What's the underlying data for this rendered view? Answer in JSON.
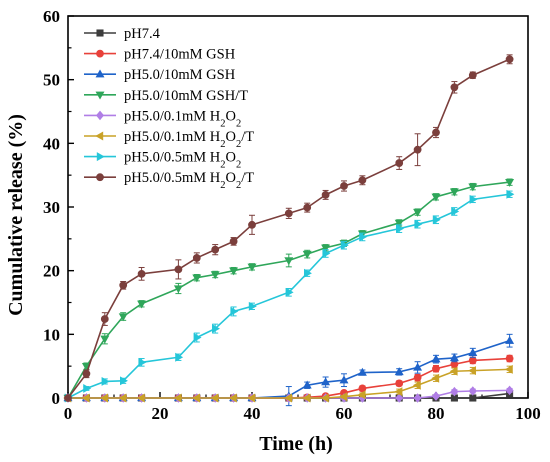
{
  "chart_data": {
    "type": "line",
    "xlabel": "Time (h)",
    "ylabel": "Cumulative release (%)",
    "xlim": [
      0,
      100
    ],
    "ylim": [
      0,
      60
    ],
    "x_ticks": [
      0,
      20,
      40,
      60,
      80,
      100
    ],
    "y_ticks": [
      0,
      10,
      20,
      30,
      40,
      50,
      60
    ],
    "grid": false,
    "legend_position": "top-left",
    "series": [
      {
        "name": "pH7.4",
        "legend": [
          {
            "t": "pH7.4"
          }
        ],
        "color": "#3d3d3d",
        "marker": "square",
        "x": [
          0,
          4,
          8,
          12,
          16,
          24,
          28,
          32,
          36,
          40,
          48,
          52,
          56,
          60,
          64,
          72,
          76,
          80,
          84,
          88,
          96
        ],
        "y": [
          0,
          0,
          0,
          0,
          0,
          0,
          0,
          0,
          0,
          0,
          0,
          0,
          0,
          0,
          0,
          0,
          0,
          0,
          0,
          0,
          0.7
        ],
        "err": [
          0,
          0,
          0,
          0,
          0,
          0,
          0,
          0,
          0,
          0,
          0,
          0,
          0,
          0,
          0,
          0,
          0,
          0,
          0,
          0,
          0.3
        ]
      },
      {
        "name": "pH7.4/10mM GSH",
        "legend": [
          {
            "t": "pH7.4/10mM GSH"
          }
        ],
        "color": "#e8413a",
        "marker": "circle",
        "x": [
          0,
          4,
          8,
          12,
          16,
          24,
          28,
          32,
          36,
          40,
          48,
          52,
          56,
          60,
          64,
          72,
          76,
          80,
          84,
          88,
          96
        ],
        "y": [
          0,
          0,
          0,
          0,
          0,
          0,
          0,
          0,
          0,
          0,
          0,
          0.1,
          0.3,
          0.8,
          1.5,
          2.3,
          3.2,
          4.6,
          5.3,
          5.9,
          6.2
        ],
        "err": [
          0,
          0,
          0,
          0,
          0,
          0,
          0,
          0,
          0,
          0,
          0,
          0.1,
          0.2,
          0.3,
          0.4,
          0.4,
          0.5,
          0.5,
          0.5,
          0.5,
          0.5
        ]
      },
      {
        "name": "pH5.0/10mM GSH",
        "legend": [
          {
            "t": "pH5.0/10mM GSH"
          }
        ],
        "color": "#1f63c9",
        "marker": "triangle-up",
        "x": [
          0,
          4,
          8,
          12,
          16,
          24,
          28,
          32,
          36,
          40,
          48,
          52,
          56,
          60,
          64,
          72,
          76,
          80,
          84,
          88,
          96
        ],
        "y": [
          0,
          0,
          0,
          0,
          0,
          0,
          0,
          0,
          0,
          0,
          0.3,
          2.0,
          2.5,
          2.8,
          4.0,
          4.1,
          4.8,
          6.1,
          6.3,
          7.1,
          9.0
        ],
        "err": [
          0,
          0,
          0,
          0,
          0,
          0,
          0,
          0,
          0,
          0,
          1.5,
          0.5,
          0.8,
          1.0,
          0.4,
          0.5,
          0.9,
          0.6,
          0.6,
          0.7,
          1.0
        ]
      },
      {
        "name": "pH5.0/10mM GSH/T",
        "legend": [
          {
            "t": "pH5.0/10mM GSH/T"
          }
        ],
        "color": "#2fa65a",
        "marker": "triangle-down",
        "x": [
          0,
          4,
          8,
          12,
          16,
          24,
          28,
          32,
          36,
          40,
          48,
          52,
          56,
          60,
          64,
          72,
          76,
          80,
          84,
          88,
          96
        ],
        "y": [
          0,
          5.0,
          9.3,
          12.8,
          14.8,
          17.2,
          18.9,
          19.4,
          20.0,
          20.6,
          21.6,
          22.6,
          23.6,
          24.3,
          25.8,
          27.5,
          29.2,
          31.6,
          32.4,
          33.2,
          33.9
        ],
        "err": [
          0,
          0.5,
          0.8,
          0.6,
          0.5,
          0.8,
          0.5,
          0.5,
          0.5,
          0.5,
          1.0,
          0.6,
          0.5,
          0.5,
          0.5,
          0.5,
          0.5,
          0.5,
          0.5,
          0.5,
          0.5
        ]
      },
      {
        "name": "pH5.0/0.1mM H2O2",
        "legend": [
          {
            "t": "pH5.0/0.1mM H"
          },
          {
            "t": "2",
            "sub": true
          },
          {
            "t": "O"
          },
          {
            "t": "2",
            "sub": true
          }
        ],
        "color": "#b07ee6",
        "marker": "diamond",
        "x": [
          0,
          4,
          8,
          12,
          16,
          24,
          28,
          32,
          36,
          40,
          48,
          52,
          56,
          60,
          64,
          72,
          76,
          80,
          84,
          88,
          96
        ],
        "y": [
          0,
          0,
          0,
          0,
          0,
          0,
          0,
          0,
          0,
          0,
          0,
          0,
          0,
          0,
          0,
          0,
          0,
          0.3,
          1.0,
          1.1,
          1.2
        ],
        "err": [
          0,
          0,
          0,
          0,
          0,
          0,
          0,
          0,
          0,
          0,
          0,
          0,
          0,
          0,
          0,
          0,
          0,
          0.2,
          0.3,
          0.3,
          0.3
        ]
      },
      {
        "name": "pH5.0/0.1mM H2O2/T",
        "legend": [
          {
            "t": "pH5.0/0.1mM H"
          },
          {
            "t": "2",
            "sub": true
          },
          {
            "t": "O"
          },
          {
            "t": "2",
            "sub": true
          },
          {
            "t": "/T"
          }
        ],
        "color": "#c9a227",
        "marker": "triangle-left",
        "x": [
          0,
          4,
          8,
          12,
          16,
          24,
          28,
          32,
          36,
          40,
          48,
          52,
          56,
          60,
          64,
          72,
          76,
          80,
          84,
          88,
          96
        ],
        "y": [
          0,
          0,
          0,
          0,
          0,
          0,
          0,
          0,
          0,
          0,
          0,
          0,
          0,
          0.2,
          0.5,
          1.0,
          2.0,
          3.1,
          4.2,
          4.3,
          4.5
        ],
        "err": [
          0,
          0,
          0,
          0,
          0,
          0,
          0,
          0,
          0,
          0,
          0,
          0,
          0,
          0.2,
          0.3,
          0.4,
          0.5,
          0.5,
          0.5,
          0.5,
          0.5
        ]
      },
      {
        "name": "pH5.0/0.5mM H2O2",
        "legend": [
          {
            "t": "pH5.0/0.5mM H"
          },
          {
            "t": "2",
            "sub": true
          },
          {
            "t": "O"
          },
          {
            "t": "2",
            "sub": true
          }
        ],
        "color": "#25c6d9",
        "marker": "triangle-right",
        "x": [
          0,
          4,
          8,
          12,
          16,
          24,
          28,
          32,
          36,
          40,
          48,
          52,
          56,
          60,
          64,
          72,
          76,
          80,
          84,
          88,
          96
        ],
        "y": [
          0,
          1.5,
          2.6,
          2.7,
          5.6,
          6.4,
          9.5,
          10.9,
          13.6,
          14.4,
          16.6,
          19.6,
          22.7,
          24.0,
          25.3,
          26.6,
          27.3,
          28.0,
          29.3,
          31.2,
          32.0
        ],
        "err": [
          0,
          0.3,
          0.4,
          0.4,
          0.6,
          0.5,
          0.7,
          0.7,
          0.7,
          0.5,
          0.6,
          0.5,
          0.6,
          0.6,
          0.6,
          0.6,
          0.6,
          0.6,
          0.6,
          0.5,
          0.5
        ]
      },
      {
        "name": "pH5.0/0.5mM H2O2/T",
        "legend": [
          {
            "t": "pH5.0/0.5mM H"
          },
          {
            "t": "2",
            "sub": true
          },
          {
            "t": "O"
          },
          {
            "t": "2",
            "sub": true
          },
          {
            "t": "/T"
          }
        ],
        "color": "#7b3f3c",
        "marker": "circle",
        "x": [
          0,
          4,
          8,
          12,
          16,
          24,
          28,
          32,
          36,
          40,
          48,
          52,
          56,
          60,
          64,
          72,
          76,
          80,
          84,
          88,
          96
        ],
        "y": [
          0,
          3.8,
          12.4,
          17.7,
          19.5,
          20.2,
          22.0,
          23.3,
          24.6,
          27.2,
          29.0,
          29.9,
          31.9,
          33.3,
          34.2,
          36.9,
          39.0,
          41.7,
          48.8,
          50.7,
          53.2
        ],
        "err": [
          0,
          0.6,
          1.0,
          0.6,
          1.0,
          1.5,
          0.8,
          0.8,
          0.6,
          1.5,
          0.8,
          0.7,
          0.7,
          0.8,
          0.7,
          1.0,
          2.5,
          0.8,
          0.9,
          0.5,
          0.7
        ]
      }
    ]
  }
}
